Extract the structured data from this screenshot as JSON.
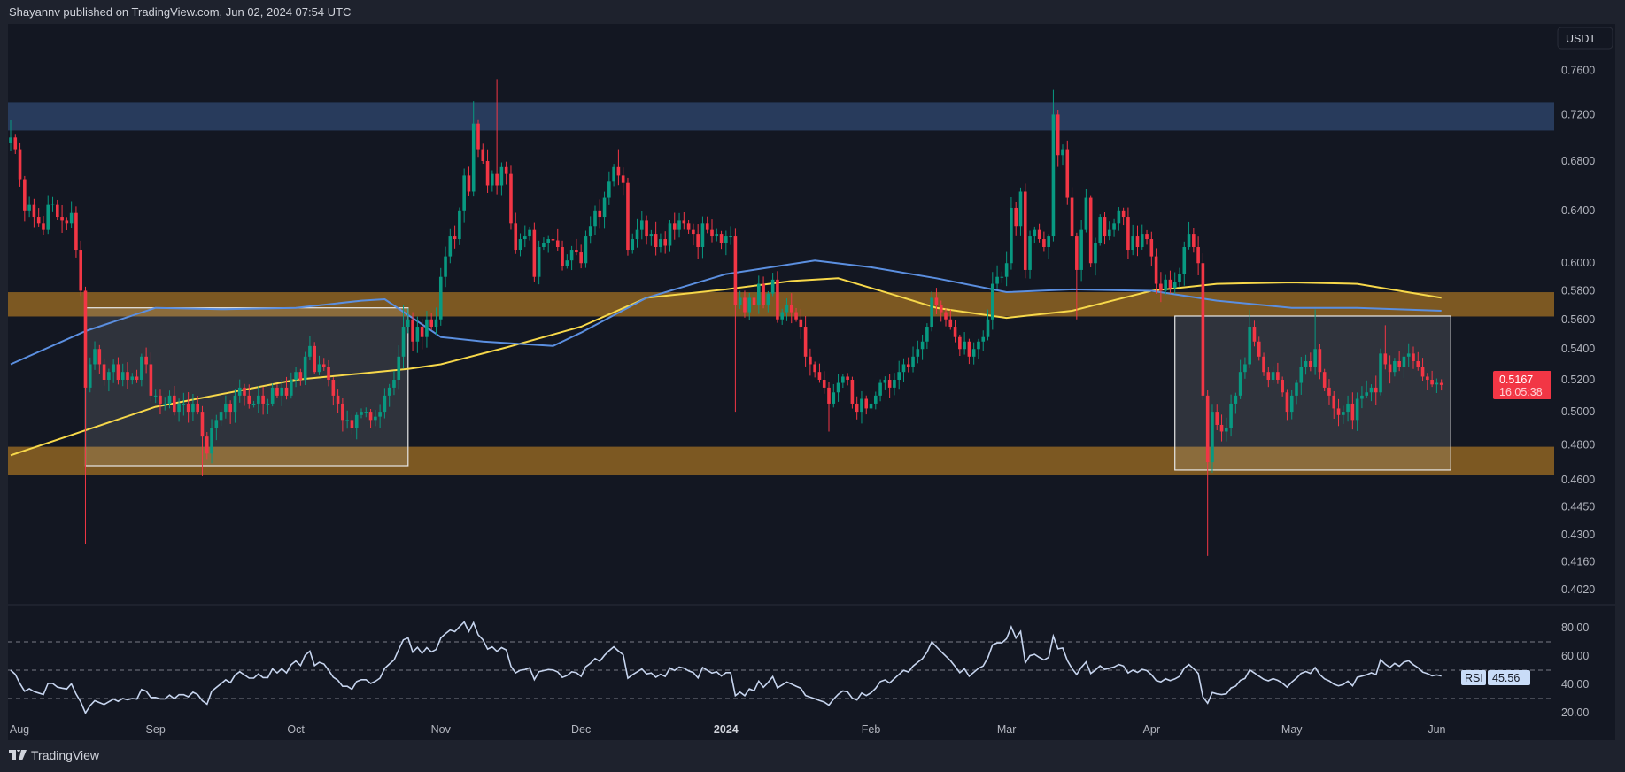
{
  "header": {
    "published": "Shayannv published on TradingView.com, Jun 02, 2024 07:54 UTC"
  },
  "footer": {
    "brand": "TradingView"
  },
  "currency_button": "USDT",
  "last_price": {
    "value": "0.5167",
    "countdown": "16:05:38",
    "color": "#f23645"
  },
  "rsi_badge": {
    "label": "RSI",
    "value": "45.56"
  },
  "colors": {
    "up": "#089981",
    "down": "#f23645",
    "ma_yellow": "#f7d84a",
    "ma_blue": "#5b8fe0",
    "rsi": "#c6d4ee",
    "supply_zone": "#283b5c",
    "support_zone": "#7c5822",
    "background": "#131722"
  },
  "chart_data": [
    {
      "type": "candlestick",
      "scale": "log",
      "interval": "1D",
      "ylim": [
        0.4,
        0.77
      ],
      "y_ticks": [
        {
          "v": 0.76,
          "label": "0.7600"
        },
        {
          "v": 0.72,
          "label": "0.7200"
        },
        {
          "v": 0.68,
          "label": "0.6800"
        },
        {
          "v": 0.64,
          "label": "0.6400"
        },
        {
          "v": 0.6,
          "label": "0.6000"
        },
        {
          "v": 0.58,
          "label": "0.5800"
        },
        {
          "v": 0.56,
          "label": "0.5600"
        },
        {
          "v": 0.54,
          "label": "0.5400"
        },
        {
          "v": 0.52,
          "label": "0.5200"
        },
        {
          "v": 0.5,
          "label": "0.5000"
        },
        {
          "v": 0.48,
          "label": "0.4800"
        },
        {
          "v": 0.46,
          "label": "0.4600"
        },
        {
          "v": 0.445,
          "label": "0.4450"
        },
        {
          "v": 0.43,
          "label": "0.4300"
        },
        {
          "v": 0.416,
          "label": "0.4160"
        },
        {
          "v": 0.402,
          "label": "0.4020"
        }
      ],
      "x_ticks": [
        {
          "date": "2023-08-01",
          "label": "Aug",
          "bold": false
        },
        {
          "date": "2023-09-01",
          "label": "Sep",
          "bold": false
        },
        {
          "date": "2023-10-01",
          "label": "Oct",
          "bold": false
        },
        {
          "date": "2023-11-01",
          "label": "Nov",
          "bold": false
        },
        {
          "date": "2023-12-01",
          "label": "Dec",
          "bold": false
        },
        {
          "date": "2024-01-01",
          "label": "2024",
          "bold": true
        },
        {
          "date": "2024-02-01",
          "label": "Feb",
          "bold": false
        },
        {
          "date": "2024-03-01",
          "label": "Mar",
          "bold": false
        },
        {
          "date": "2024-04-01",
          "label": "Apr",
          "bold": false
        },
        {
          "date": "2024-05-01",
          "label": "May",
          "bold": false
        },
        {
          "date": "2024-06-01",
          "label": "Jun",
          "bold": false
        }
      ],
      "closes_by_month": {
        "2023-08": [
          0.7,
          0.69,
          0.665,
          0.64,
          0.645,
          0.635,
          0.63,
          0.625,
          0.645,
          0.645,
          0.635,
          0.632,
          0.63,
          0.638,
          0.61,
          0.58,
          0.515,
          0.53,
          0.54,
          0.53,
          0.52,
          0.525,
          0.53,
          0.52,
          0.525,
          0.52,
          0.522,
          0.52,
          0.535,
          0.53,
          0.51
        ],
        "2023-09": [
          0.51,
          0.505,
          0.505,
          0.51,
          0.5,
          0.505,
          0.505,
          0.5,
          0.505,
          0.5,
          0.485,
          0.475,
          0.49,
          0.495,
          0.5,
          0.505,
          0.5,
          0.51,
          0.515,
          0.51,
          0.505,
          0.505,
          0.51,
          0.505,
          0.505,
          0.515,
          0.51,
          0.515,
          0.51,
          0.52
        ],
        "2023-10": [
          0.525,
          0.52,
          0.535,
          0.542,
          0.525,
          0.53,
          0.528,
          0.52,
          0.51,
          0.505,
          0.495,
          0.495,
          0.49,
          0.498,
          0.5,
          0.5,
          0.495,
          0.497,
          0.5,
          0.51,
          0.515,
          0.52,
          0.535,
          0.555,
          0.56,
          0.545,
          0.555,
          0.548,
          0.56,
          0.555,
          0.56
        ],
        "2023-11": [
          0.59,
          0.605,
          0.62,
          0.618,
          0.64,
          0.668,
          0.655,
          0.712,
          0.69,
          0.68,
          0.66,
          0.67,
          0.66,
          0.675,
          0.67,
          0.63,
          0.61,
          0.618,
          0.62,
          0.625,
          0.59,
          0.612,
          0.615,
          0.618,
          0.617,
          0.612,
          0.598,
          0.602,
          0.61,
          0.608
        ],
        "2023-12": [
          0.6,
          0.62,
          0.628,
          0.64,
          0.635,
          0.65,
          0.663,
          0.675,
          0.668,
          0.662,
          0.61,
          0.618,
          0.625,
          0.632,
          0.62,
          0.622,
          0.612,
          0.618,
          0.613,
          0.63,
          0.625,
          0.632,
          0.63,
          0.625,
          0.622,
          0.612,
          0.63,
          0.625,
          0.62,
          0.622,
          0.615
        ],
        "2024-01": [
          0.62,
          0.62,
          0.57,
          0.575,
          0.565,
          0.575,
          0.57,
          0.585,
          0.57,
          0.578,
          0.588,
          0.56,
          0.565,
          0.57,
          0.565,
          0.56,
          0.555,
          0.535,
          0.53,
          0.525,
          0.52,
          0.515,
          0.505,
          0.512,
          0.518,
          0.522,
          0.52,
          0.505,
          0.5,
          0.508,
          0.502
        ],
        "2024-02": [
          0.505,
          0.51,
          0.518,
          0.52,
          0.515,
          0.52,
          0.525,
          0.53,
          0.528,
          0.535,
          0.54,
          0.545,
          0.555,
          0.575,
          0.57,
          0.565,
          0.56,
          0.555,
          0.548,
          0.54,
          0.545,
          0.535,
          0.54,
          0.545,
          0.548,
          0.56,
          0.585,
          0.59,
          0.59
        ],
        "2024-03": [
          0.6,
          0.642,
          0.628,
          0.655,
          0.595,
          0.62,
          0.625,
          0.618,
          0.612,
          0.62,
          0.72,
          0.685,
          0.69,
          0.65,
          0.62,
          0.595,
          0.625,
          0.65,
          0.6,
          0.615,
          0.635,
          0.62,
          0.625,
          0.63,
          0.64,
          0.635,
          0.61,
          0.62,
          0.612,
          0.622,
          0.618
        ],
        "2024-04": [
          0.605,
          0.585,
          0.58,
          0.588,
          0.582,
          0.586,
          0.592,
          0.612,
          0.622,
          0.612,
          0.6,
          0.51,
          0.47,
          0.5,
          0.492,
          0.488,
          0.49,
          0.505,
          0.51,
          0.525,
          0.53,
          0.555,
          0.545,
          0.535,
          0.525,
          0.52,
          0.525,
          0.52,
          0.512,
          0.5
        ],
        "2024-05": [
          0.51,
          0.518,
          0.528,
          0.532,
          0.528,
          0.54,
          0.525,
          0.515,
          0.51,
          0.502,
          0.498,
          0.5,
          0.505,
          0.495,
          0.508,
          0.51,
          0.512,
          0.515,
          0.512,
          0.537,
          0.53,
          0.525,
          0.532,
          0.528,
          0.535,
          0.537,
          0.532,
          0.528,
          0.522,
          0.52,
          0.517
        ],
        "2024-06": [
          0.518,
          0.5167
        ]
      },
      "wick_extremes": [
        {
          "date": "2023-08-01",
          "high": 0.715
        },
        {
          "date": "2023-08-17",
          "low": 0.425
        },
        {
          "date": "2023-09-11",
          "low": 0.462
        },
        {
          "date": "2023-10-24",
          "high": 0.57
        },
        {
          "date": "2023-11-08",
          "high": 0.732
        },
        {
          "date": "2023-11-13",
          "high": 0.752
        },
        {
          "date": "2023-12-09",
          "high": 0.69
        },
        {
          "date": "2024-01-03",
          "low": 0.5
        },
        {
          "date": "2024-01-23",
          "low": 0.488
        },
        {
          "date": "2024-03-11",
          "high": 0.742
        },
        {
          "date": "2024-03-16",
          "low": 0.56
        },
        {
          "date": "2024-04-13",
          "low": 0.419
        },
        {
          "date": "2024-04-22",
          "high": 0.567
        },
        {
          "date": "2024-05-06",
          "high": 0.567
        },
        {
          "date": "2024-05-21",
          "high": 0.556
        }
      ],
      "moving_averages": [
        {
          "color": "#f7d84a",
          "points": [
            [
              "2023-08-01",
              0.474
            ],
            [
              "2023-09-01",
              0.503
            ],
            [
              "2023-10-01",
              0.52
            ],
            [
              "2023-10-25",
              0.527
            ],
            [
              "2023-11-01",
              0.53
            ],
            [
              "2023-11-15",
              0.541
            ],
            [
              "2023-12-01",
              0.555
            ],
            [
              "2023-12-15",
              0.575
            ],
            [
              "2024-01-01",
              0.581
            ],
            [
              "2024-01-15",
              0.587
            ],
            [
              "2024-01-25",
              0.589
            ],
            [
              "2024-02-05",
              0.578
            ],
            [
              "2024-02-15",
              0.568
            ],
            [
              "2024-03-01",
              0.561
            ],
            [
              "2024-03-15",
              0.566
            ],
            [
              "2024-04-01",
              0.58
            ],
            [
              "2024-04-15",
              0.585
            ],
            [
              "2024-05-01",
              0.586
            ],
            [
              "2024-05-15",
              0.585
            ],
            [
              "2024-06-02",
              0.575
            ]
          ]
        },
        {
          "color": "#5b8fe0",
          "points": [
            [
              "2023-08-01",
              0.53
            ],
            [
              "2023-08-17",
              0.552
            ],
            [
              "2023-09-01",
              0.568
            ],
            [
              "2023-09-15",
              0.567
            ],
            [
              "2023-10-01",
              0.568
            ],
            [
              "2023-10-15",
              0.573
            ],
            [
              "2023-10-20",
              0.574
            ],
            [
              "2023-11-01",
              0.548
            ],
            [
              "2023-11-10",
              0.545
            ],
            [
              "2023-11-25",
              0.542
            ],
            [
              "2023-12-01",
              0.551
            ],
            [
              "2023-12-15",
              0.575
            ],
            [
              "2024-01-01",
              0.592
            ],
            [
              "2024-01-20",
              0.602
            ],
            [
              "2024-02-01",
              0.597
            ],
            [
              "2024-02-15",
              0.589
            ],
            [
              "2024-03-01",
              0.579
            ],
            [
              "2024-03-15",
              0.581
            ],
            [
              "2024-04-01",
              0.58
            ],
            [
              "2024-04-15",
              0.573
            ],
            [
              "2024-05-01",
              0.568
            ],
            [
              "2024-05-15",
              0.568
            ],
            [
              "2024-06-02",
              0.566
            ]
          ]
        }
      ],
      "zones": [
        {
          "kind": "resistance",
          "from": 0.706,
          "to": 0.731,
          "color": "#283b5c"
        },
        {
          "kind": "support-upper",
          "from": 0.562,
          "to": 0.579,
          "color": "#7c5822"
        },
        {
          "kind": "support-lower",
          "from": 0.4625,
          "to": 0.479,
          "color": "#7c5822"
        }
      ],
      "range_boxes": [
        {
          "start": "2023-08-17",
          "end": "2023-10-25",
          "top": 0.568,
          "bottom": 0.468
        },
        {
          "start": "2024-04-06",
          "end": "2024-06-04",
          "top": 0.5623,
          "bottom": 0.4655
        }
      ]
    },
    {
      "type": "line",
      "indicator": "RSI",
      "ylim": [
        10,
        95
      ],
      "y_ticks": [
        {
          "v": 80,
          "label": "80.00"
        },
        {
          "v": 60,
          "label": "60.00"
        },
        {
          "v": 40,
          "label": "40.00"
        },
        {
          "v": 20,
          "label": "20.00"
        }
      ],
      "bands": [
        70,
        50,
        30
      ],
      "last_value": 45.56
    }
  ]
}
